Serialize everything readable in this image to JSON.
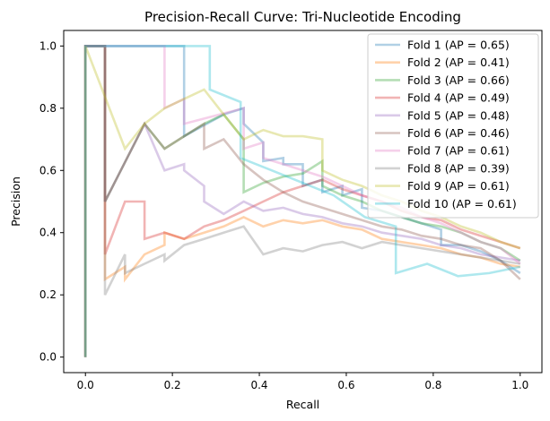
{
  "chart_data": {
    "type": "line",
    "title": "Precision-Recall Curve: Tri-Nucleotide Encoding",
    "xlabel": "Recall",
    "ylabel": "Precision",
    "xlim": [
      -0.05,
      1.05
    ],
    "ylim": [
      -0.05,
      1.05
    ],
    "xticks": [
      0.0,
      0.2,
      0.4,
      0.6,
      0.8,
      1.0
    ],
    "yticks": [
      0.0,
      0.2,
      0.4,
      0.6,
      0.8,
      1.0
    ],
    "xtick_labels": [
      "0.0",
      "0.2",
      "0.4",
      "0.6",
      "0.8",
      "1.0"
    ],
    "ytick_labels": [
      "0.0",
      "0.2",
      "0.4",
      "0.6",
      "0.8",
      "1.0"
    ],
    "grid": false,
    "legend_position": "upper-right",
    "series": [
      {
        "name": "Fold 1 (AP = 0.65)",
        "color": "#1f77b4",
        "x": [
          0,
          0,
          0.227,
          0.227,
          0.318,
          0.364,
          0.364,
          0.409,
          0.409,
          0.455,
          0.455,
          0.5,
          0.5,
          0.545,
          0.545,
          0.591,
          0.591,
          0.636,
          0.636,
          0.682,
          0.727,
          0.773,
          0.818,
          0.818,
          0.864,
          0.909,
          0.955,
          1.0
        ],
        "y": [
          0,
          1.0,
          1.0,
          0.71,
          0.78,
          0.8,
          0.75,
          0.69,
          0.63,
          0.64,
          0.62,
          0.62,
          0.55,
          0.57,
          0.53,
          0.55,
          0.52,
          0.54,
          0.48,
          0.47,
          0.45,
          0.43,
          0.41,
          0.36,
          0.36,
          0.34,
          0.31,
          0.27
        ]
      },
      {
        "name": "Fold 2 (AP = 0.41)",
        "color": "#ff7f0e",
        "x": [
          0,
          0,
          0.045,
          0.045,
          0.091,
          0.091,
          0.136,
          0.182,
          0.182,
          0.227,
          0.273,
          0.318,
          0.364,
          0.409,
          0.455,
          0.5,
          0.545,
          0.591,
          0.636,
          0.682,
          0.727,
          0.773,
          0.818,
          0.864,
          0.909,
          0.955,
          1.0
        ],
        "y": [
          0,
          1.0,
          1.0,
          0.25,
          0.29,
          0.25,
          0.33,
          0.36,
          0.4,
          0.38,
          0.4,
          0.42,
          0.45,
          0.42,
          0.44,
          0.43,
          0.44,
          0.42,
          0.41,
          0.38,
          0.37,
          0.36,
          0.35,
          0.33,
          0.32,
          0.3,
          0.29
        ]
      },
      {
        "name": "Fold 3 (AP = 0.66)",
        "color": "#2ca02c",
        "x": [
          0,
          0,
          0.045,
          0.045,
          0.136,
          0.182,
          0.227,
          0.273,
          0.318,
          0.364,
          0.364,
          0.409,
          0.455,
          0.5,
          0.545,
          0.545,
          0.591,
          0.636,
          0.682,
          0.727,
          0.773,
          0.818,
          0.864,
          0.909,
          0.955,
          1.0
        ],
        "y": [
          0,
          1.0,
          1.0,
          0.5,
          0.75,
          0.67,
          0.71,
          0.75,
          0.78,
          0.7,
          0.53,
          0.56,
          0.58,
          0.59,
          0.63,
          0.55,
          0.52,
          0.5,
          0.47,
          0.45,
          0.43,
          0.42,
          0.4,
          0.37,
          0.35,
          0.31
        ]
      },
      {
        "name": "Fold 4 (AP = 0.49)",
        "color": "#d62728",
        "x": [
          0,
          0,
          0.045,
          0.045,
          0.091,
          0.136,
          0.136,
          0.182,
          0.227,
          0.273,
          0.318,
          0.364,
          0.409,
          0.455,
          0.5,
          0.545,
          0.591,
          0.636,
          0.682,
          0.727,
          0.773,
          0.818,
          0.864,
          0.909,
          0.955,
          1.0
        ],
        "y": [
          0,
          1.0,
          1.0,
          0.33,
          0.5,
          0.5,
          0.38,
          0.4,
          0.38,
          0.42,
          0.44,
          0.47,
          0.5,
          0.53,
          0.55,
          0.57,
          0.54,
          0.52,
          0.5,
          0.47,
          0.45,
          0.44,
          0.41,
          0.39,
          0.37,
          0.35
        ]
      },
      {
        "name": "Fold 5 (AP = 0.48)",
        "color": "#9467bd",
        "x": [
          0,
          0,
          0.045,
          0.045,
          0.136,
          0.182,
          0.227,
          0.227,
          0.273,
          0.273,
          0.318,
          0.364,
          0.409,
          0.455,
          0.5,
          0.545,
          0.591,
          0.636,
          0.682,
          0.727,
          0.773,
          0.818,
          0.864,
          0.909,
          0.955,
          1.0
        ],
        "y": [
          0,
          1.0,
          1.0,
          0.5,
          0.75,
          0.6,
          0.62,
          0.6,
          0.55,
          0.5,
          0.46,
          0.5,
          0.47,
          0.48,
          0.46,
          0.45,
          0.43,
          0.42,
          0.4,
          0.39,
          0.38,
          0.36,
          0.35,
          0.33,
          0.32,
          0.31
        ]
      },
      {
        "name": "Fold 6 (AP = 0.46)",
        "color": "#8c564b",
        "x": [
          0,
          0,
          0.045,
          0.045,
          0.136,
          0.182,
          0.227,
          0.273,
          0.273,
          0.318,
          0.364,
          0.409,
          0.455,
          0.5,
          0.545,
          0.591,
          0.636,
          0.682,
          0.727,
          0.773,
          0.818,
          0.864,
          0.909,
          0.955,
          1.0
        ],
        "y": [
          0,
          1.0,
          1.0,
          0.5,
          0.75,
          0.67,
          0.71,
          0.75,
          0.67,
          0.7,
          0.62,
          0.57,
          0.53,
          0.5,
          0.48,
          0.46,
          0.44,
          0.42,
          0.41,
          0.39,
          0.38,
          0.36,
          0.35,
          0.31,
          0.25
        ]
      },
      {
        "name": "Fold 7 (AP = 0.61)",
        "color": "#e377c2",
        "x": [
          0,
          0,
          0.182,
          0.182,
          0.227,
          0.227,
          0.364,
          0.364,
          0.409,
          0.409,
          0.455,
          0.5,
          0.545,
          0.591,
          0.636,
          0.682,
          0.727,
          0.773,
          0.818,
          0.864,
          0.909,
          0.955,
          1.0
        ],
        "y": [
          0,
          1.0,
          1.0,
          0.8,
          0.83,
          0.75,
          0.8,
          0.67,
          0.69,
          0.64,
          0.62,
          0.6,
          0.58,
          0.55,
          0.52,
          0.5,
          0.48,
          0.45,
          0.43,
          0.4,
          0.37,
          0.35,
          0.3
        ]
      },
      {
        "name": "Fold 8 (AP = 0.39)",
        "color": "#7f7f7f",
        "x": [
          0,
          0,
          0.045,
          0.045,
          0.091,
          0.091,
          0.136,
          0.182,
          0.182,
          0.227,
          0.273,
          0.318,
          0.364,
          0.409,
          0.455,
          0.5,
          0.545,
          0.591,
          0.636,
          0.682,
          0.727,
          0.773,
          0.818,
          0.864,
          0.909,
          0.955,
          1.0
        ],
        "y": [
          0,
          1.0,
          1.0,
          0.2,
          0.33,
          0.27,
          0.3,
          0.33,
          0.31,
          0.36,
          0.38,
          0.4,
          0.42,
          0.33,
          0.35,
          0.34,
          0.36,
          0.37,
          0.35,
          0.37,
          0.36,
          0.35,
          0.34,
          0.33,
          0.32,
          0.31,
          0.3
        ]
      },
      {
        "name": "Fold 9 (AP = 0.61)",
        "color": "#bcbd22",
        "x": [
          0,
          0,
          0.091,
          0.136,
          0.182,
          0.227,
          0.273,
          0.318,
          0.364,
          0.409,
          0.455,
          0.5,
          0.545,
          0.545,
          0.591,
          0.636,
          0.682,
          0.727,
          0.773,
          0.818,
          0.864,
          0.909,
          0.955,
          1.0
        ],
        "y": [
          0,
          1.0,
          0.67,
          0.75,
          0.8,
          0.83,
          0.86,
          0.78,
          0.7,
          0.73,
          0.71,
          0.71,
          0.7,
          0.6,
          0.57,
          0.55,
          0.52,
          0.5,
          0.47,
          0.45,
          0.42,
          0.4,
          0.37,
          0.35
        ]
      },
      {
        "name": "Fold 10 (AP = 0.61)",
        "color": "#17becf",
        "x": [
          0,
          0,
          0.286,
          0.286,
          0.357,
          0.357,
          0.429,
          0.5,
          0.571,
          0.643,
          0.714,
          0.714,
          0.786,
          0.857,
          0.929,
          1.0
        ],
        "y": [
          0,
          1.0,
          1.0,
          0.86,
          0.82,
          0.64,
          0.6,
          0.56,
          0.52,
          0.45,
          0.42,
          0.27,
          0.3,
          0.26,
          0.27,
          0.29
        ]
      }
    ]
  }
}
